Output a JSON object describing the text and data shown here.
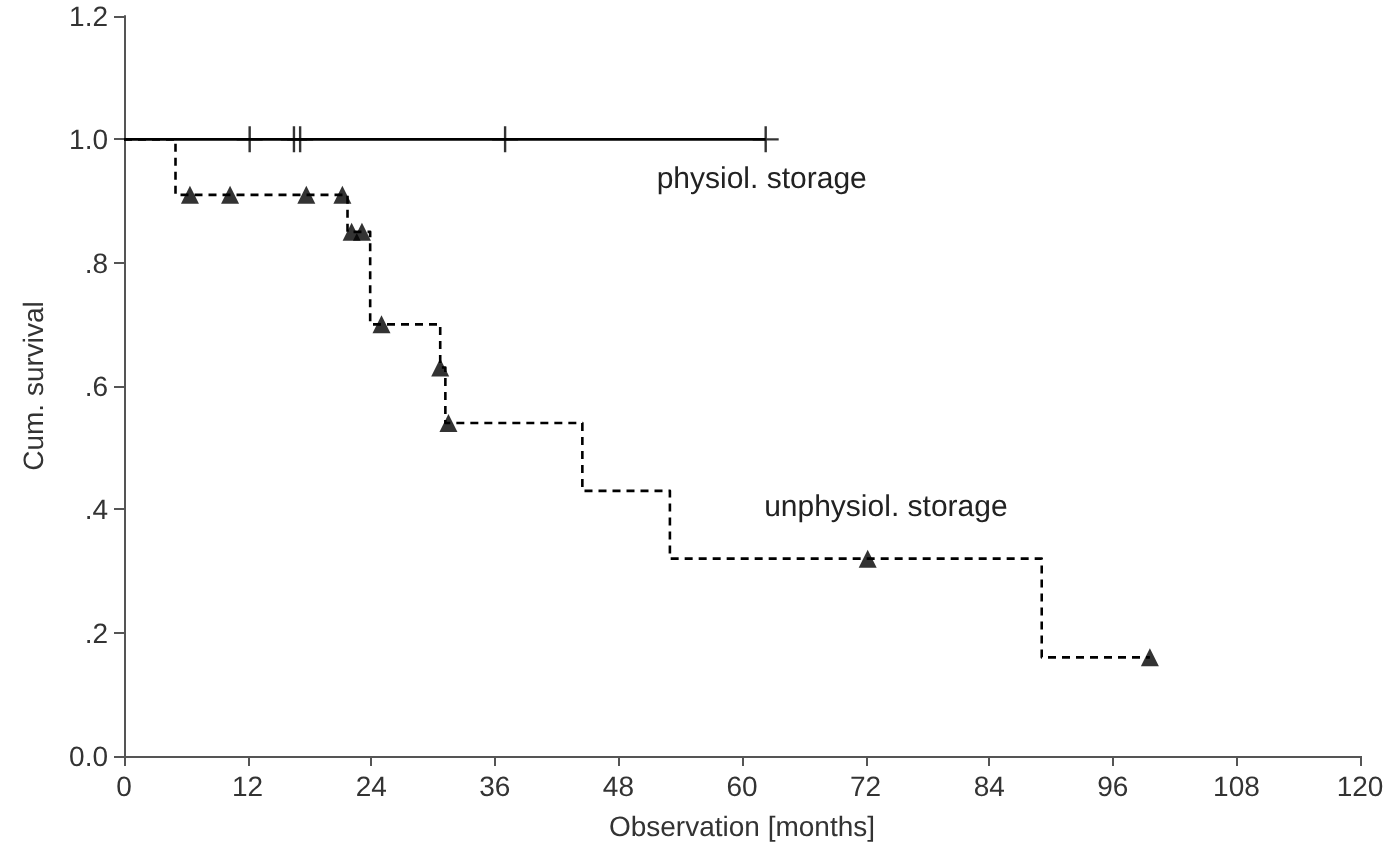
{
  "chart_data": {
    "type": "step",
    "xlabel": "Observation [months]",
    "ylabel": "Cum. survival",
    "xlim": [
      0,
      120
    ],
    "xticks": [
      0,
      12,
      24,
      36,
      48,
      60,
      72,
      84,
      96,
      108,
      120
    ],
    "ylim": [
      0,
      1.2
    ],
    "yticks": [
      {
        "value": 0,
        "label": "0.0"
      },
      {
        "value": 0.2,
        "label": ".2"
      },
      {
        "value": 0.4,
        "label": ".4"
      },
      {
        "value": 0.6,
        "label": ".6"
      },
      {
        "value": 0.8,
        "label": ".8"
      },
      {
        "value": 1,
        "label": "1.0"
      },
      {
        "value": 1.2,
        "label": "1.2"
      }
    ],
    "grid": false,
    "series": [
      {
        "name": "physiol. storage",
        "color": "#000000",
        "line_style": "solid",
        "marker": "none",
        "x": [
          0,
          62.3
        ],
        "values": [
          1,
          1
        ]
      },
      {
        "type": "scatter",
        "color": "#000000",
        "marker": "cross",
        "x": [
          12.2,
          16.5,
          17.1,
          37,
          62.3
        ],
        "values": [
          1,
          1,
          1,
          1,
          1
        ]
      },
      {
        "name": "unphysiol. storage",
        "color": "#000000",
        "line_style": "dashed",
        "marker": "none",
        "x": [
          0,
          5,
          21.7,
          23.9,
          30.7,
          31.2,
          44.5,
          53,
          89.1,
          99.6
        ],
        "values": [
          1,
          0.91,
          0.85,
          0.7,
          0.63,
          0.54,
          0.43,
          0.32,
          0.16,
          0.16
        ]
      },
      {
        "type": "scatter",
        "color": "#000000",
        "marker": "triangle",
        "x": [
          6.4,
          10.3,
          17.7,
          21.2,
          22.1,
          23.1,
          25,
          30.7,
          31.5,
          72.2,
          99.6
        ],
        "values": [
          0.91,
          0.91,
          0.91,
          0.91,
          0.85,
          0.85,
          0.7,
          0.63,
          0.54,
          0.32,
          0.16
        ]
      }
    ]
  }
}
